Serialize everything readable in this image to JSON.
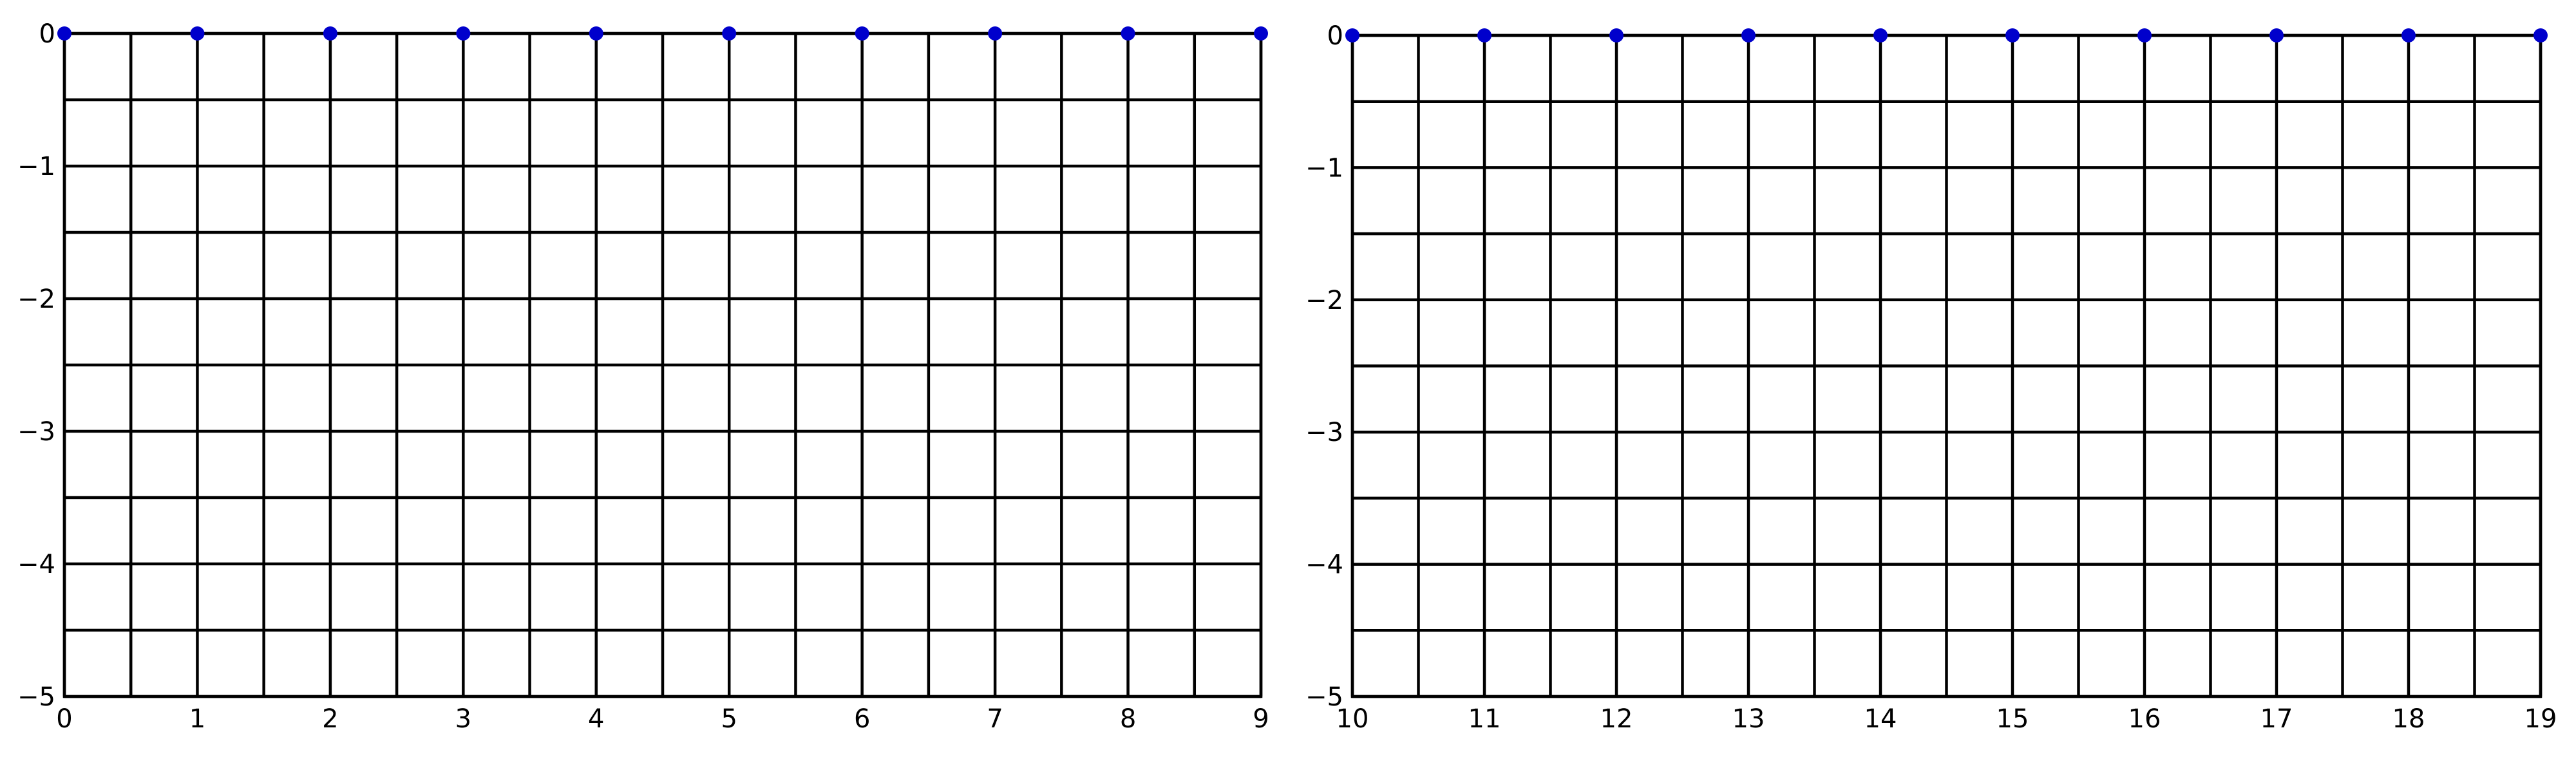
{
  "chart_data": [
    {
      "type": "scatter",
      "title": "",
      "xlabel": "",
      "ylabel": "",
      "xlim": [
        0,
        9
      ],
      "ylim": [
        -5,
        0
      ],
      "x_ticks": [
        0,
        1,
        2,
        3,
        4,
        5,
        6,
        7,
        8,
        9
      ],
      "x_tick_labels": [
        "0",
        "1",
        "2",
        "3",
        "4",
        "5",
        "6",
        "7",
        "8",
        "9"
      ],
      "y_ticks": [
        0,
        -1,
        -2,
        -3,
        -4,
        -5
      ],
      "y_tick_labels": [
        "0",
        "−1",
        "−2",
        "−3",
        "−4",
        "−5"
      ],
      "grid": true,
      "grid_step_x": 0.5,
      "grid_step_y": 0.5,
      "series": [
        {
          "color": "#0000cc",
          "x": [
            0,
            1,
            2,
            3,
            4,
            5,
            6,
            7,
            8,
            9
          ],
          "y": [
            0,
            0,
            0,
            0,
            0,
            0,
            0,
            0,
            0,
            0
          ]
        }
      ]
    },
    {
      "type": "scatter",
      "title": "",
      "xlabel": "",
      "ylabel": "",
      "xlim": [
        10,
        19
      ],
      "ylim": [
        -5,
        0
      ],
      "x_ticks": [
        10,
        11,
        12,
        13,
        14,
        15,
        16,
        17,
        18,
        19
      ],
      "x_tick_labels": [
        "10",
        "11",
        "12",
        "13",
        "14",
        "15",
        "16",
        "17",
        "18",
        "19"
      ],
      "y_ticks": [
        0,
        -1,
        -2,
        -3,
        -4,
        -5
      ],
      "y_tick_labels": [
        "0",
        "−1",
        "−2",
        "−3",
        "−4",
        "−5"
      ],
      "grid": true,
      "grid_step_x": 0.5,
      "grid_step_y": 0.5,
      "series": [
        {
          "color": "#0000cc",
          "x": [
            10,
            11,
            12,
            13,
            14,
            15,
            16,
            17,
            18,
            19
          ],
          "y": [
            0,
            0,
            0,
            0,
            0,
            0,
            0,
            0,
            0,
            0
          ]
        }
      ]
    }
  ]
}
